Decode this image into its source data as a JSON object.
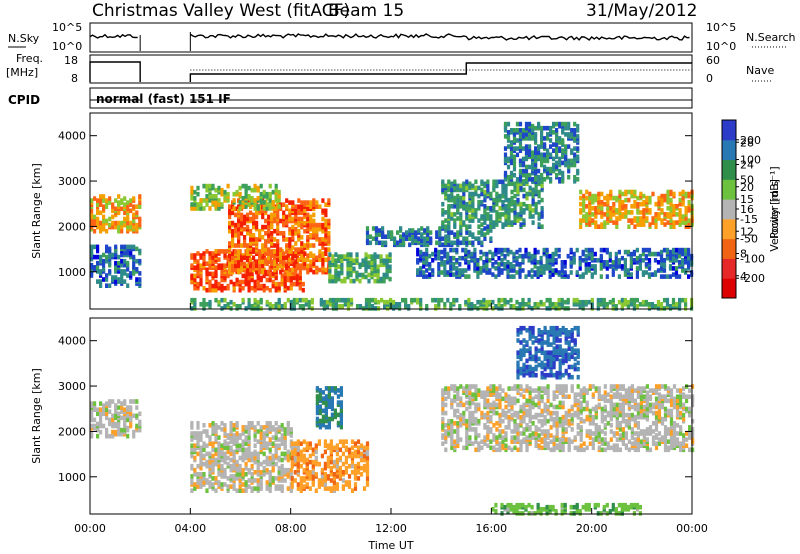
{
  "header": {
    "station": "Christmas Valley West (fitACF)",
    "beam": "Beam 15",
    "date": "31/May/2012"
  },
  "noise_panel": {
    "left_label": "N.Sky",
    "right_label": "N.Search",
    "left_ticks": [
      "10^5",
      "10^0"
    ],
    "right_ticks": [
      "10^5",
      "10^0"
    ]
  },
  "freq_panel": {
    "left_label_1": "Freq.",
    "left_label_2": "[MHz]",
    "right_label": "Nave",
    "left_ticks": [
      "18",
      "8"
    ],
    "right_ticks": [
      "60",
      "0"
    ]
  },
  "cpid": {
    "label": "CPID",
    "text": "normal (fast) 151 IF"
  },
  "chart_data": [
    {
      "type": "heatmap",
      "name": "power",
      "ylabel": "Slant Range [km]",
      "xlabel": "Time UT",
      "ylim": [
        180,
        4500
      ],
      "yticks": [
        "1000",
        "2000",
        "3000",
        "4000"
      ],
      "x_tick_labels": [
        "00:00",
        "04:00",
        "08:00",
        "12:00",
        "16:00",
        "20:00",
        "00:00"
      ],
      "colorbar": {
        "label": "Power [dB]",
        "range": [
          0,
          32
        ],
        "ticks": [
          "4",
          "8",
          "12",
          "16",
          "20",
          "24",
          "28"
        ],
        "colors": [
          "#0000dd",
          "#1e46c8",
          "#2f8a8a",
          "#3ca05a",
          "#8cc832",
          "#f5a000",
          "#ff6414",
          "#f51e00"
        ]
      },
      "regions": [
        {
          "t": [
            0.0,
            2.0
          ],
          "r": [
            1900,
            2700
          ],
          "level": 22
        },
        {
          "t": [
            0.0,
            2.0
          ],
          "r": [
            700,
            1600
          ],
          "level": 8
        },
        {
          "t": [
            4.0,
            8.5
          ],
          "r": [
            600,
            1500
          ],
          "level": 28
        },
        {
          "t": [
            5.5,
            9.5
          ],
          "r": [
            1000,
            2600
          ],
          "level": 26
        },
        {
          "t": [
            4.0,
            7.5
          ],
          "r": [
            2400,
            2900
          ],
          "level": 18
        },
        {
          "t": [
            9.5,
            12.0
          ],
          "r": [
            800,
            1400
          ],
          "level": 14
        },
        {
          "t": [
            11.0,
            16.0
          ],
          "r": [
            1600,
            2000
          ],
          "level": 10
        },
        {
          "t": [
            13.0,
            24.0
          ],
          "r": [
            900,
            1500
          ],
          "level": 8
        },
        {
          "t": [
            14.0,
            18.0
          ],
          "r": [
            2000,
            3000
          ],
          "level": 12
        },
        {
          "t": [
            16.5,
            19.5
          ],
          "r": [
            3000,
            4300
          ],
          "level": 10
        },
        {
          "t": [
            19.5,
            24.0
          ],
          "r": [
            2000,
            2800
          ],
          "level": 22
        },
        {
          "t": [
            4.0,
            24.0
          ],
          "r": [
            200,
            400
          ],
          "level": 14
        }
      ]
    },
    {
      "type": "heatmap",
      "name": "velocity",
      "ylabel": "Slant Range [km]",
      "xlabel": "Time UT",
      "ylim": [
        180,
        4500
      ],
      "yticks": [
        "1000",
        "2000",
        "3000",
        "4000"
      ],
      "x_tick_labels": [
        "00:00",
        "04:00",
        "08:00",
        "12:00",
        "16:00",
        "20:00",
        "00:00"
      ],
      "colorbar": {
        "label": "Velocity [m s⁻¹]",
        "range": [
          -250,
          250
        ],
        "ticks": [
          "200",
          "100",
          "50",
          "15",
          "-15",
          "-50",
          "-100",
          "-200"
        ],
        "colors": [
          "#2c3cc8",
          "#2878b4",
          "#2f8f4a",
          "#6cc13e",
          "#b4b4b4",
          "#ffa028",
          "#f06414",
          "#e62828",
          "#dd0000"
        ]
      },
      "regions": [
        {
          "t": [
            0.0,
            2.0
          ],
          "r": [
            1900,
            2700
          ],
          "level": 0
        },
        {
          "t": [
            4.0,
            8.0
          ],
          "r": [
            700,
            2200
          ],
          "level": 0
        },
        {
          "t": [
            8.0,
            11.0
          ],
          "r": [
            700,
            1800
          ],
          "level": -60
        },
        {
          "t": [
            9.0,
            10.0
          ],
          "r": [
            2100,
            3000
          ],
          "level": 150
        },
        {
          "t": [
            14.0,
            24.0
          ],
          "r": [
            1600,
            3000
          ],
          "level": 0
        },
        {
          "t": [
            17.0,
            19.5
          ],
          "r": [
            3200,
            4300
          ],
          "level": 180
        },
        {
          "t": [
            16.0,
            22.0
          ],
          "r": [
            200,
            400
          ],
          "level": 60
        }
      ]
    }
  ]
}
